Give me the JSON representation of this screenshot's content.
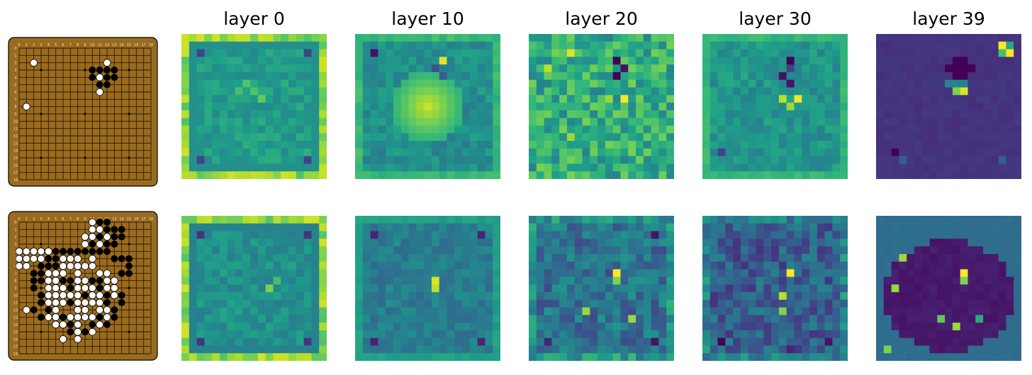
{
  "column_titles": [
    "layer 0",
    "layer 10",
    "layer 20",
    "layer 30",
    "layer 39"
  ],
  "board": {
    "size": 19,
    "wood_color": "#9A6B1F",
    "line_color": "#2a1a05",
    "coord_labels": [
      "0",
      "1",
      "2",
      "3",
      "4",
      "5",
      "6",
      "7",
      "8",
      "9",
      "10",
      "11",
      "12",
      "13",
      "14",
      "15",
      "16",
      "17",
      "18"
    ]
  },
  "colormap": "viridis",
  "rows": [
    {
      "board_stones": {
        "black": [
          [
            10,
            3
          ],
          [
            11,
            3
          ],
          [
            12,
            3
          ],
          [
            13,
            3
          ],
          [
            10,
            4
          ],
          [
            12,
            4
          ],
          [
            13,
            4
          ],
          [
            11,
            5
          ],
          [
            12,
            5
          ]
        ],
        "white": [
          [
            2,
            2
          ],
          [
            12,
            2
          ],
          [
            11,
            4
          ],
          [
            11,
            6
          ],
          [
            1,
            8
          ]
        ]
      },
      "heatmaps": [
        {
          "pattern": "border-bright",
          "base": 0.55,
          "seed": 3,
          "hot": [
            [
              2,
              2,
              0.2
            ],
            [
              16,
              2,
              0.2
            ],
            [
              2,
              16,
              0.2
            ],
            [
              16,
              16,
              0.2
            ],
            [
              8,
              6,
              0.72
            ],
            [
              9,
              7,
              0.72
            ],
            [
              10,
              8,
              0.75
            ],
            [
              7,
              7,
              0.7
            ]
          ]
        },
        {
          "pattern": "blob",
          "base": 0.5,
          "seed": 7,
          "blob": [
            9,
            9,
            5,
            0.92
          ],
          "hot": [
            [
              2,
              2,
              0.05
            ],
            [
              11,
              3,
              0.95
            ],
            [
              10,
              4,
              0.25
            ],
            [
              11,
              5,
              0.3
            ]
          ]
        },
        {
          "pattern": "noisy",
          "base": 0.62,
          "seed": 11,
          "hot": [
            [
              5,
              2,
              0.95
            ],
            [
              11,
              3,
              0.0
            ],
            [
              12,
              4,
              0.05
            ],
            [
              11,
              5,
              0.0
            ],
            [
              12,
              8,
              1.0
            ],
            [
              10,
              8,
              0.85
            ],
            [
              2,
              4,
              0.9
            ],
            [
              1,
              17,
              0.8
            ],
            [
              5,
              13,
              0.85
            ]
          ]
        },
        {
          "pattern": "plain",
          "base": 0.52,
          "seed": 19,
          "hot": [
            [
              11,
              3,
              0.0
            ],
            [
              11,
              4,
              0.2
            ],
            [
              10,
              5,
              0.05
            ],
            [
              11,
              6,
              0.05
            ],
            [
              12,
              8,
              0.98
            ],
            [
              10,
              8,
              0.9
            ],
            [
              11,
              9,
              0.85
            ],
            [
              2,
              15,
              0.2
            ]
          ]
        },
        {
          "pattern": "dark",
          "base": 0.15,
          "seed": 23,
          "hot": [
            [
              16,
              1,
              1.0
            ],
            [
              17,
              2,
              1.0
            ],
            [
              16,
              2,
              0.7
            ],
            [
              17,
              1,
              0.6
            ],
            [
              10,
              3,
              0.0
            ],
            [
              11,
              3,
              0.0
            ],
            [
              9,
              4,
              0.0
            ],
            [
              10,
              4,
              0.0
            ],
            [
              11,
              4,
              0.0
            ],
            [
              12,
              4,
              0.0
            ],
            [
              10,
              5,
              0.0
            ],
            [
              11,
              5,
              0.0
            ],
            [
              10,
              6,
              0.45
            ],
            [
              11,
              6,
              0.45
            ],
            [
              9,
              6,
              0.45
            ],
            [
              10,
              7,
              0.8
            ],
            [
              11,
              7,
              0.95
            ],
            [
              2,
              15,
              0.0
            ],
            [
              3,
              16,
              0.3
            ],
            [
              16,
              16,
              0.3
            ]
          ]
        }
      ]
    },
    {
      "board_stones": {
        "black": [
          [
            11,
            0
          ],
          [
            12,
            0
          ],
          [
            12,
            1
          ],
          [
            13,
            1
          ],
          [
            14,
            1
          ],
          [
            11,
            2
          ],
          [
            13,
            2
          ],
          [
            14,
            2
          ],
          [
            10,
            3
          ],
          [
            12,
            3
          ],
          [
            13,
            3
          ],
          [
            5,
            4
          ],
          [
            6,
            4
          ],
          [
            7,
            4
          ],
          [
            8,
            4
          ],
          [
            9,
            4
          ],
          [
            10,
            4
          ],
          [
            11,
            4
          ],
          [
            12,
            4
          ],
          [
            4,
            5
          ],
          [
            5,
            5
          ],
          [
            13,
            5
          ],
          [
            14,
            5
          ],
          [
            15,
            5
          ],
          [
            3,
            6
          ],
          [
            4,
            6
          ],
          [
            5,
            6
          ],
          [
            15,
            6
          ],
          [
            2,
            7
          ],
          [
            3,
            7
          ],
          [
            14,
            7
          ],
          [
            15,
            7
          ],
          [
            2,
            8
          ],
          [
            3,
            8
          ],
          [
            6,
            8
          ],
          [
            7,
            8
          ],
          [
            10,
            8
          ],
          [
            11,
            8
          ],
          [
            2,
            9
          ],
          [
            7,
            9
          ],
          [
            11,
            9
          ],
          [
            3,
            10
          ],
          [
            9,
            10
          ],
          [
            12,
            10
          ],
          [
            14,
            10
          ],
          [
            3,
            11
          ],
          [
            7,
            11
          ],
          [
            12,
            11
          ],
          [
            14,
            11
          ],
          [
            2,
            12
          ],
          [
            4,
            12
          ],
          [
            13,
            12
          ],
          [
            3,
            13
          ],
          [
            6,
            13
          ],
          [
            11,
            13
          ],
          [
            13,
            13
          ],
          [
            7,
            14
          ],
          [
            10,
            14
          ],
          [
            12,
            14
          ],
          [
            7,
            15
          ],
          [
            9,
            15
          ]
        ],
        "white": [
          [
            10,
            0
          ],
          [
            10,
            1
          ],
          [
            11,
            1
          ],
          [
            9,
            2
          ],
          [
            10,
            2
          ],
          [
            12,
            2
          ],
          [
            9,
            3
          ],
          [
            11,
            3
          ],
          [
            0,
            4
          ],
          [
            1,
            4
          ],
          [
            2,
            4
          ],
          [
            3,
            4
          ],
          [
            4,
            4
          ],
          [
            0,
            5
          ],
          [
            1,
            5
          ],
          [
            2,
            5
          ],
          [
            3,
            5
          ],
          [
            6,
            5
          ],
          [
            7,
            5
          ],
          [
            8,
            5
          ],
          [
            10,
            5
          ],
          [
            0,
            6
          ],
          [
            1,
            6
          ],
          [
            6,
            6
          ],
          [
            7,
            6
          ],
          [
            8,
            6
          ],
          [
            9,
            6
          ],
          [
            10,
            6
          ],
          [
            4,
            7
          ],
          [
            5,
            7
          ],
          [
            6,
            7
          ],
          [
            8,
            7
          ],
          [
            11,
            7
          ],
          [
            12,
            7
          ],
          [
            4,
            8
          ],
          [
            5,
            8
          ],
          [
            8,
            8
          ],
          [
            9,
            8
          ],
          [
            12,
            8
          ],
          [
            13,
            8
          ],
          [
            4,
            9
          ],
          [
            5,
            9
          ],
          [
            6,
            9
          ],
          [
            8,
            9
          ],
          [
            9,
            9
          ],
          [
            10,
            9
          ],
          [
            12,
            9
          ],
          [
            13,
            9
          ],
          [
            4,
            10
          ],
          [
            5,
            10
          ],
          [
            6,
            10
          ],
          [
            7,
            10
          ],
          [
            8,
            10
          ],
          [
            10,
            10
          ],
          [
            11,
            10
          ],
          [
            13,
            10
          ],
          [
            4,
            11
          ],
          [
            5,
            11
          ],
          [
            6,
            11
          ],
          [
            8,
            11
          ],
          [
            9,
            11
          ],
          [
            10,
            11
          ],
          [
            11,
            11
          ],
          [
            1,
            12
          ],
          [
            5,
            12
          ],
          [
            8,
            12
          ],
          [
            9,
            12
          ],
          [
            11,
            12
          ],
          [
            12,
            12
          ],
          [
            4,
            13
          ],
          [
            5,
            13
          ],
          [
            7,
            13
          ],
          [
            8,
            13
          ],
          [
            9,
            13
          ],
          [
            10,
            13
          ],
          [
            12,
            13
          ],
          [
            5,
            14
          ],
          [
            6,
            14
          ],
          [
            8,
            14
          ],
          [
            11,
            14
          ],
          [
            8,
            15
          ],
          [
            10,
            15
          ],
          [
            6,
            16
          ],
          [
            8,
            16
          ]
        ]
      },
      "heatmaps": [
        {
          "pattern": "border-bright",
          "base": 0.5,
          "seed": 31,
          "hot": [
            [
              2,
              2,
              0.15
            ],
            [
              16,
              2,
              0.15
            ],
            [
              2,
              16,
              0.15
            ],
            [
              16,
              16,
              0.15
            ],
            [
              11,
              9,
              0.8
            ],
            [
              12,
              8,
              0.7
            ]
          ]
        },
        {
          "pattern": "plain",
          "base": 0.42,
          "seed": 37,
          "hot": [
            [
              10,
              8,
              0.95
            ],
            [
              10,
              9,
              0.9
            ],
            [
              2,
              2,
              0.1
            ],
            [
              16,
              2,
              0.1
            ],
            [
              2,
              16,
              0.1
            ],
            [
              16,
              16,
              0.1
            ]
          ]
        },
        {
          "pattern": "noisy-dark",
          "base": 0.38,
          "seed": 41,
          "hot": [
            [
              11,
              7,
              1.0
            ],
            [
              11,
              8,
              0.8
            ],
            [
              7,
              12,
              0.85
            ],
            [
              13,
              13,
              0.85
            ],
            [
              16,
              2,
              0.05
            ],
            [
              2,
              16,
              0.1
            ],
            [
              16,
              16,
              0.05
            ]
          ]
        },
        {
          "pattern": "noisy-dark",
          "base": 0.3,
          "seed": 43,
          "hot": [
            [
              11,
              7,
              1.0
            ],
            [
              10,
              10,
              0.9
            ],
            [
              10,
              12,
              0.8
            ],
            [
              2,
              16,
              0.0
            ],
            [
              16,
              16,
              0.05
            ],
            [
              11,
              17,
              0.1
            ]
          ]
        },
        {
          "pattern": "territory",
          "base": 0.33,
          "seed": 47,
          "hot": [
            [
              11,
              7,
              1.0
            ],
            [
              11,
              8,
              0.8
            ],
            [
              2,
              9,
              0.85
            ],
            [
              3,
              5,
              0.85
            ],
            [
              1,
              17,
              0.8
            ],
            [
              8,
              13,
              0.75
            ],
            [
              10,
              14,
              0.85
            ],
            [
              13,
              13,
              0.6
            ]
          ]
        }
      ]
    }
  ]
}
